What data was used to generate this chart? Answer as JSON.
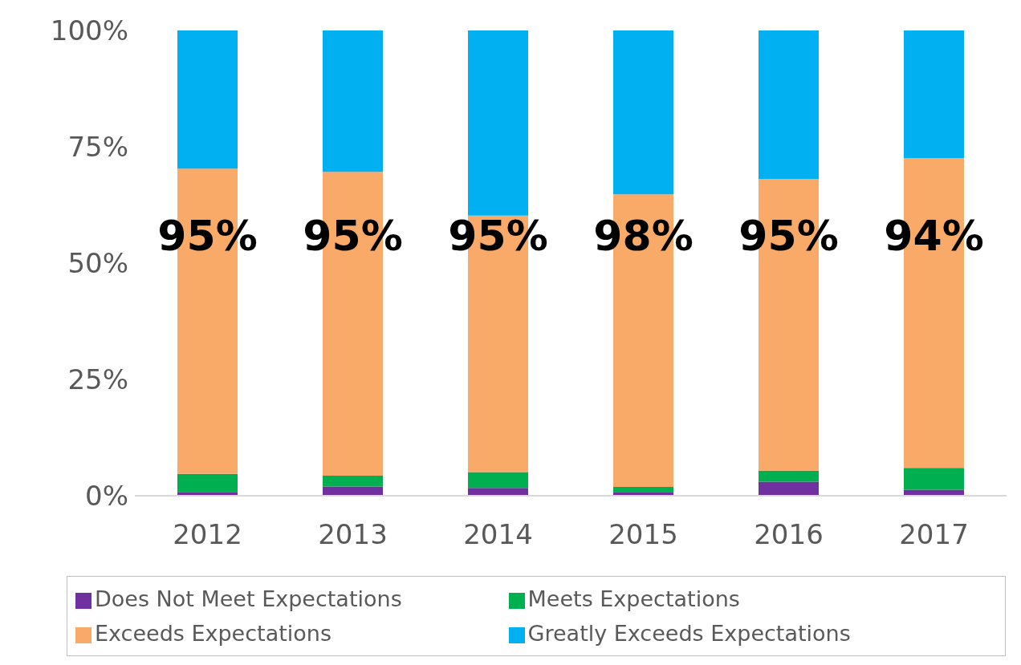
{
  "chart_data": {
    "type": "bar",
    "stacked": true,
    "categories": [
      "2012",
      "2013",
      "2014",
      "2015",
      "2016",
      "2017"
    ],
    "series": [
      {
        "name": "Does Not Meet Expectations",
        "color": "#7030a0",
        "values": [
          0.8,
          2,
          1.7,
          0.8,
          3,
          1.3
        ]
      },
      {
        "name": "Meets Expectations",
        "color": "#00b050",
        "values": [
          3.9,
          2.3,
          3.4,
          1.1,
          2.4,
          4.7
        ]
      },
      {
        "name": "Exceeds Expectations",
        "color": "#f9a968",
        "values": [
          65.6,
          65.3,
          55.1,
          62.9,
          62.7,
          66.6
        ]
      },
      {
        "name": "Greatly Exceeds Expectations",
        "color": "#00b0f0",
        "values": [
          29.7,
          30.4,
          39.8,
          35.2,
          31.9,
          27.4
        ]
      }
    ],
    "ylim": [
      0,
      100
    ],
    "yticks": [
      {
        "value": 0,
        "label": "0%"
      },
      {
        "value": 25,
        "label": "25%"
      },
      {
        "value": 50,
        "label": "50%"
      },
      {
        "value": 75,
        "label": "75%"
      },
      {
        "value": 100,
        "label": "100%"
      }
    ],
    "grid": false,
    "legend": "bottom",
    "annotations": [
      "95%",
      "95%",
      "95%",
      "98%",
      "95%",
      "94%"
    ]
  }
}
